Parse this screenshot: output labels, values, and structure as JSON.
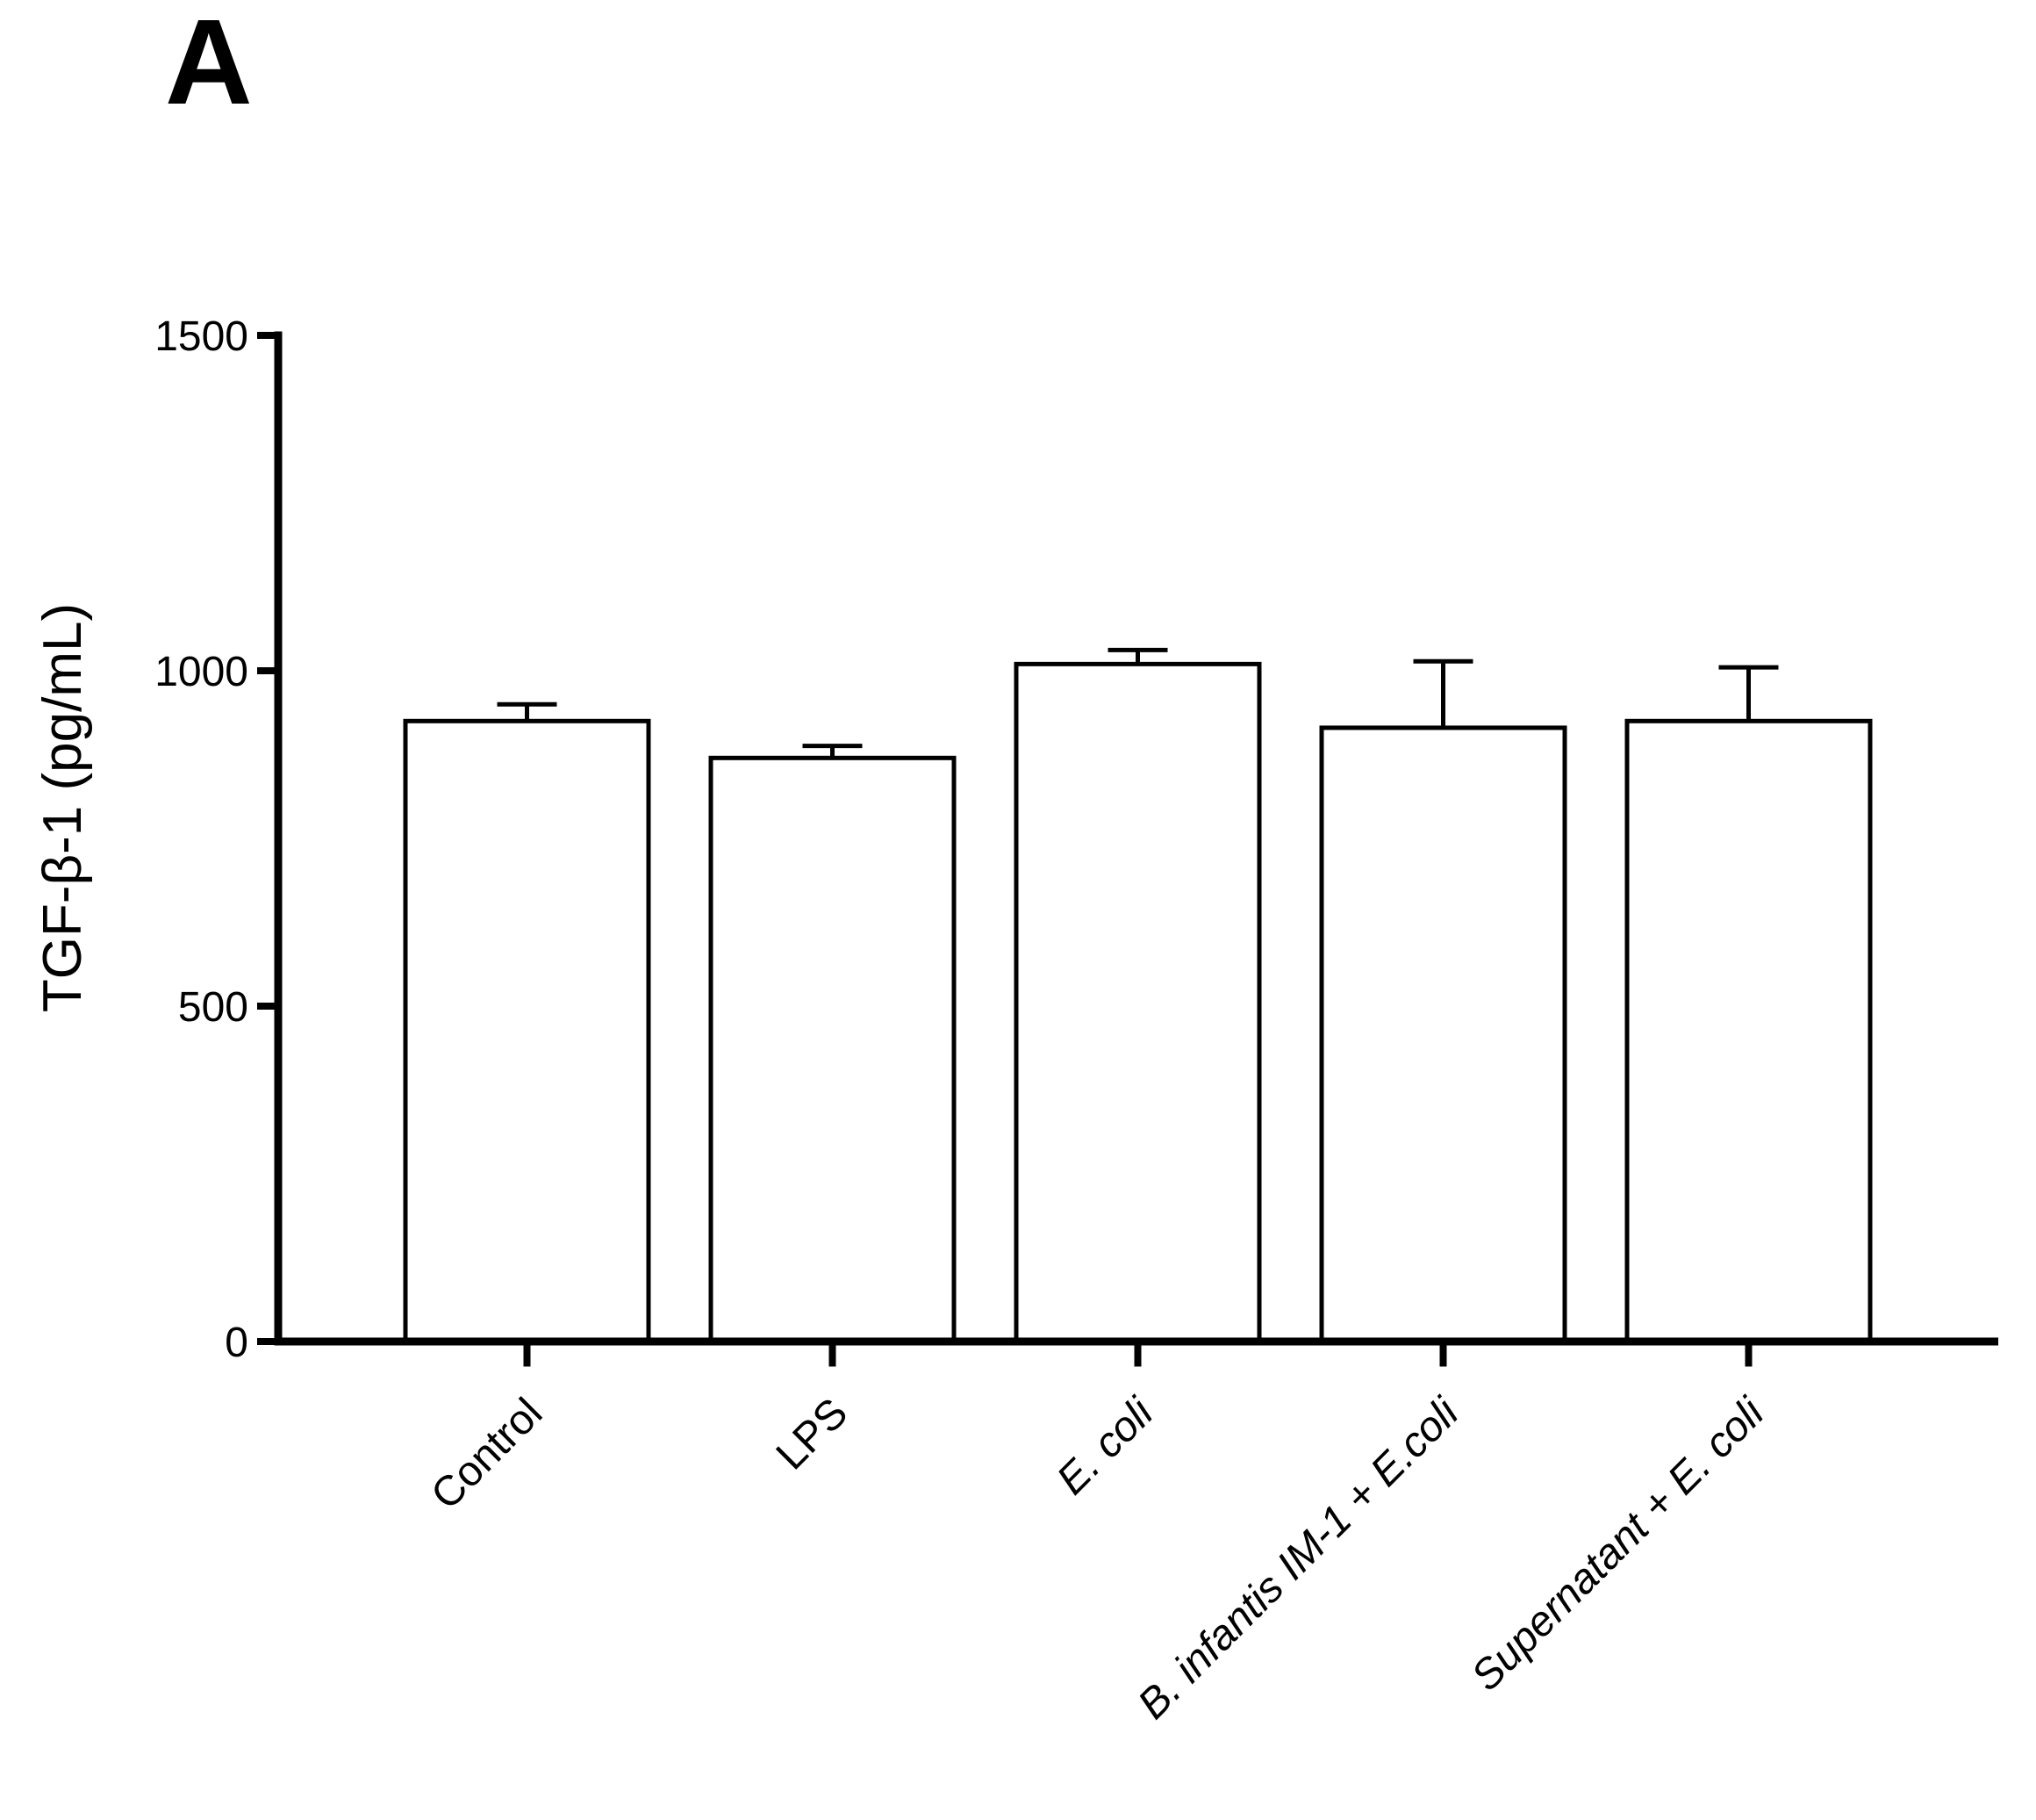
{
  "page": {
    "background": "#ffffff",
    "panel_label": "A"
  },
  "chart_data": {
    "type": "bar",
    "title": "",
    "xlabel": "",
    "ylabel": "TGF-β-1 (pg/mL)",
    "ylim": [
      0,
      1500
    ],
    "yticks": [
      0,
      500,
      1000,
      1500
    ],
    "categories": [
      "Control",
      "LPS",
      "E. coli",
      "B. infantis IM-1 + E.coli",
      "Supernatant + E. coli"
    ],
    "values": [
      925,
      870,
      1010,
      915,
      925
    ],
    "errors_plus": [
      25,
      18,
      21,
      99,
      80
    ],
    "category_italic": [
      false,
      false,
      true,
      true,
      true
    ],
    "error_bar_style": "upper-cap-only",
    "bar_fill": "#ffffff",
    "bar_stroke": "#000000",
    "axis_color": "#000000",
    "text_color": "#000000",
    "grid": false,
    "legend_position": "none",
    "x_tick_label_rotation_deg": -45
  }
}
